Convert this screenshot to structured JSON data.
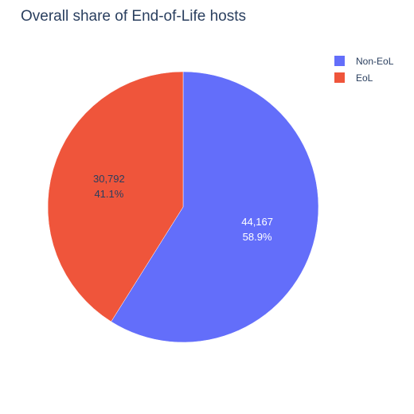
{
  "chart_data": {
    "type": "pie",
    "title": "Overall share of End-of-Life hosts",
    "slices": [
      {
        "label": "Non-EoL",
        "value": 44167,
        "value_text": "44,167",
        "percent_text": "58.9%",
        "color": "#636efa",
        "text_color": "#ffffff"
      },
      {
        "label": "EoL",
        "value": 30792,
        "value_text": "30,792",
        "percent_text": "41.1%",
        "color": "#ef553b",
        "text_color": "#2a3f5f"
      }
    ],
    "legend_position": "top-right"
  }
}
